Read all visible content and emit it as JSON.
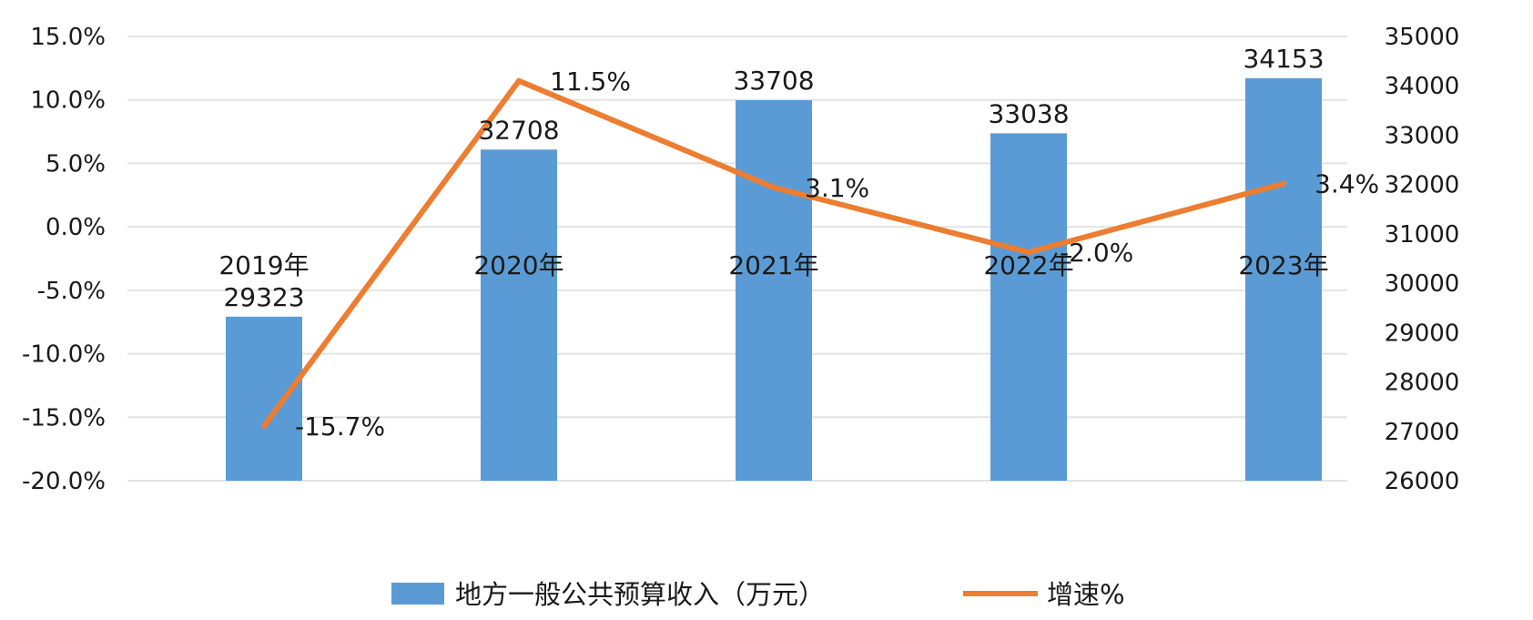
{
  "chart_data": {
    "type": "bar",
    "categories": [
      "2019年",
      "2020年",
      "2021年",
      "2022年",
      "2023年"
    ],
    "series": [
      {
        "name": "地方一般公共预算收入（万元）",
        "type": "bar",
        "axis": "right",
        "values": [
          29323,
          32708,
          33708,
          33038,
          34153
        ],
        "value_labels": [
          "29323",
          "32708",
          "33708",
          "33038",
          "34153"
        ],
        "color": "#5b9bd5"
      },
      {
        "name": "增速%",
        "type": "line",
        "axis": "left",
        "values": [
          -15.7,
          11.5,
          3.1,
          -2.0,
          3.4
        ],
        "value_labels": [
          "-15.7%",
          "11.5%",
          "3.1%",
          "-2.0%",
          "3.4%"
        ],
        "color": "#ed7d31"
      }
    ],
    "y_left": {
      "ylim": [
        -20,
        15
      ],
      "ticks": [
        15,
        10,
        5,
        0,
        -5,
        -10,
        -15,
        -20
      ],
      "tick_labels": [
        "15.0%",
        "10.0%",
        "5.0%",
        "0.0%",
        "-5.0%",
        "-10.0%",
        "-15.0%",
        "-20.0%"
      ]
    },
    "y_right": {
      "ylim": [
        26000,
        35000
      ],
      "ticks": [
        35000,
        34000,
        33000,
        32000,
        31000,
        30000,
        29000,
        28000,
        27000,
        26000
      ],
      "tick_labels": [
        "35000",
        "34000",
        "33000",
        "32000",
        "31000",
        "30000",
        "29000",
        "28000",
        "27000",
        "26000"
      ]
    },
    "grid": true,
    "legend_position": "bottom",
    "title": ""
  }
}
